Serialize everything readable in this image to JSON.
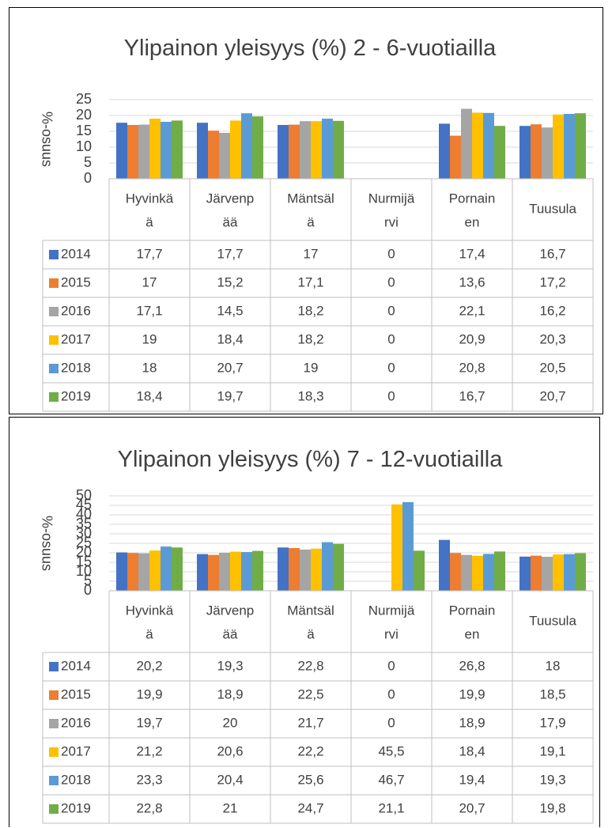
{
  "chart_data": [
    {
      "type": "bar",
      "title": "Ylipainon yleisyys (%) 2 - 6-vuotiailla",
      "ylabel": "%-osuus",
      "ylim": [
        0,
        25
      ],
      "yticks": [
        "0",
        "5",
        "10",
        "15",
        "20",
        "25"
      ],
      "legend": "table-left",
      "grid": true,
      "categories": [
        [
          "Hyvinkä",
          "ä"
        ],
        [
          "Järvenp",
          "ää"
        ],
        [
          "Mäntsäl",
          "ä"
        ],
        [
          "Nurmijä",
          "rvi"
        ],
        [
          "Pornain",
          "en"
        ],
        [
          "Tuusula"
        ]
      ],
      "series": [
        {
          "name": "2014",
          "color": "#4472c4",
          "values": [
            17.7,
            17.7,
            17,
            0,
            17.4,
            16.7
          ],
          "labels": [
            "17,7",
            "17,7",
            "17",
            "0",
            "17,4",
            "16,7"
          ]
        },
        {
          "name": "2015",
          "color": "#ed7d31",
          "values": [
            17,
            15.2,
            17.1,
            0,
            13.6,
            17.2
          ],
          "labels": [
            "17",
            "15,2",
            "17,1",
            "0",
            "13,6",
            "17,2"
          ]
        },
        {
          "name": "2016",
          "color": "#a5a5a5",
          "values": [
            17.1,
            14.5,
            18.2,
            0,
            22.1,
            16.2
          ],
          "labels": [
            "17,1",
            "14,5",
            "18,2",
            "0",
            "22,1",
            "16,2"
          ]
        },
        {
          "name": "2017",
          "color": "#ffc000",
          "values": [
            19,
            18.4,
            18.2,
            0,
            20.9,
            20.3
          ],
          "labels": [
            "19",
            "18,4",
            "18,2",
            "0",
            "20,9",
            "20,3"
          ]
        },
        {
          "name": "2018",
          "color": "#5b9bd5",
          "values": [
            18,
            20.7,
            19,
            0,
            20.8,
            20.5
          ],
          "labels": [
            "18",
            "20,7",
            "19",
            "0",
            "20,8",
            "20,5"
          ]
        },
        {
          "name": "2019",
          "color": "#70ad47",
          "values": [
            18.4,
            19.7,
            18.3,
            0,
            16.7,
            20.7
          ],
          "labels": [
            "18,4",
            "19,7",
            "18,3",
            "0",
            "16,7",
            "20,7"
          ]
        }
      ]
    },
    {
      "type": "bar",
      "title": "Ylipainon yleisyys (%) 7 - 12-vuotiailla",
      "ylabel": "%-osuus",
      "ylim": [
        0,
        50
      ],
      "yticks": [
        "0",
        "5",
        "10",
        "15",
        "20",
        "25",
        "30",
        "35",
        "40",
        "45",
        "50"
      ],
      "legend": "table-left",
      "grid": true,
      "categories": [
        [
          "Hyvinkä",
          "ä"
        ],
        [
          "Järvenp",
          "ää"
        ],
        [
          "Mäntsäl",
          "ä"
        ],
        [
          "Nurmijä",
          "rvi"
        ],
        [
          "Pornain",
          "en"
        ],
        [
          "Tuusula"
        ]
      ],
      "series": [
        {
          "name": "2014",
          "color": "#4472c4",
          "values": [
            20.2,
            19.3,
            22.8,
            0,
            26.8,
            18
          ],
          "labels": [
            "20,2",
            "19,3",
            "22,8",
            "0",
            "26,8",
            "18"
          ]
        },
        {
          "name": "2015",
          "color": "#ed7d31",
          "values": [
            19.9,
            18.9,
            22.5,
            0,
            19.9,
            18.5
          ],
          "labels": [
            "19,9",
            "18,9",
            "22,5",
            "0",
            "19,9",
            "18,5"
          ]
        },
        {
          "name": "2016",
          "color": "#a5a5a5",
          "values": [
            19.7,
            20,
            21.7,
            0,
            18.9,
            17.9
          ],
          "labels": [
            "19,7",
            "20",
            "21,7",
            "0",
            "18,9",
            "17,9"
          ]
        },
        {
          "name": "2017",
          "color": "#ffc000",
          "values": [
            21.2,
            20.6,
            22.2,
            45.5,
            18.4,
            19.1
          ],
          "labels": [
            "21,2",
            "20,6",
            "22,2",
            "45,5",
            "18,4",
            "19,1"
          ]
        },
        {
          "name": "2018",
          "color": "#5b9bd5",
          "values": [
            23.3,
            20.4,
            25.6,
            46.7,
            19.4,
            19.3
          ],
          "labels": [
            "23,3",
            "20,4",
            "25,6",
            "46,7",
            "19,4",
            "19,3"
          ]
        },
        {
          "name": "2019",
          "color": "#70ad47",
          "values": [
            22.8,
            21,
            24.7,
            21.1,
            20.7,
            19.8
          ],
          "labels": [
            "22,8",
            "21",
            "24,7",
            "21,1",
            "20,7",
            "19,8"
          ]
        }
      ]
    }
  ]
}
